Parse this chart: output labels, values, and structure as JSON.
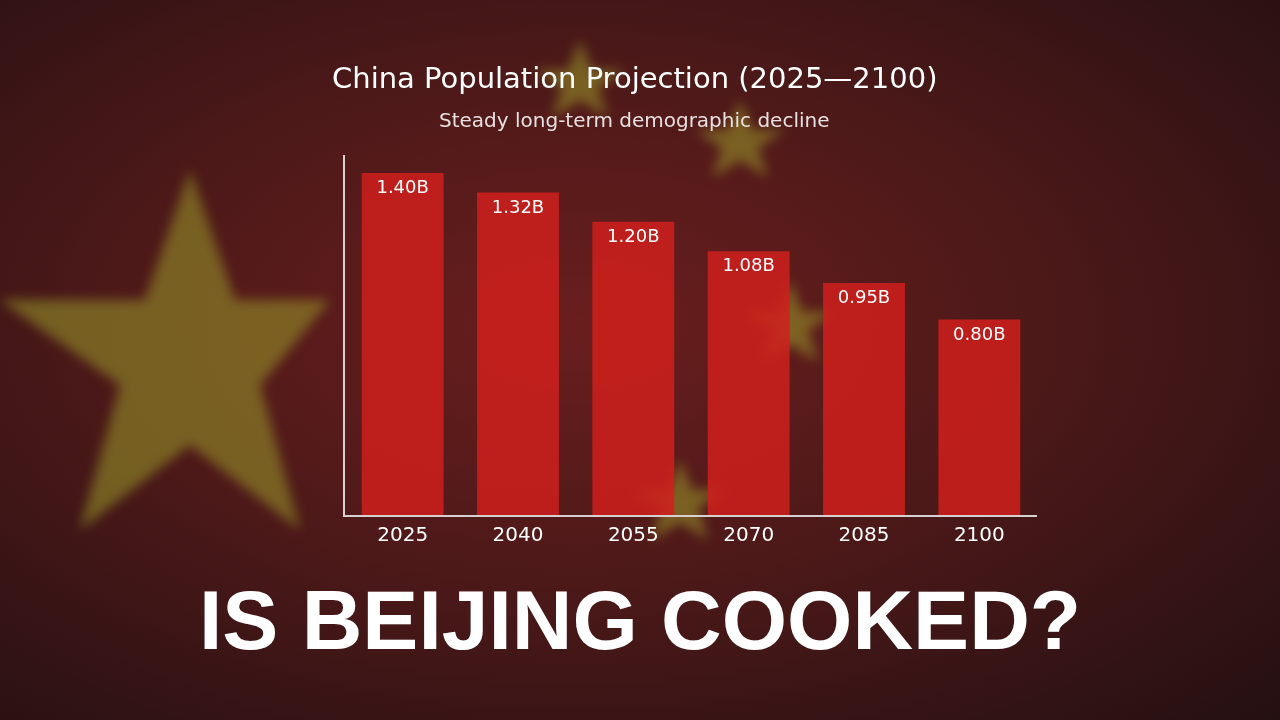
{
  "chart_data": {
    "type": "bar",
    "title": "China Population Projection (2025—2100)",
    "subtitle": "Steady long-term demographic decline",
    "categories": [
      "2025",
      "2040",
      "2055",
      "2070",
      "2085",
      "2100"
    ],
    "values": [
      1.4,
      1.32,
      1.2,
      1.08,
      0.95,
      0.8
    ],
    "value_labels": [
      "1.40B",
      "1.32B",
      "1.20B",
      "1.08B",
      "0.95B",
      "0.80B"
    ],
    "color": "#d0201c",
    "grid": false,
    "tick_labels": "x",
    "annotations": [
      "IS BEIJING COOKED?"
    ]
  }
}
